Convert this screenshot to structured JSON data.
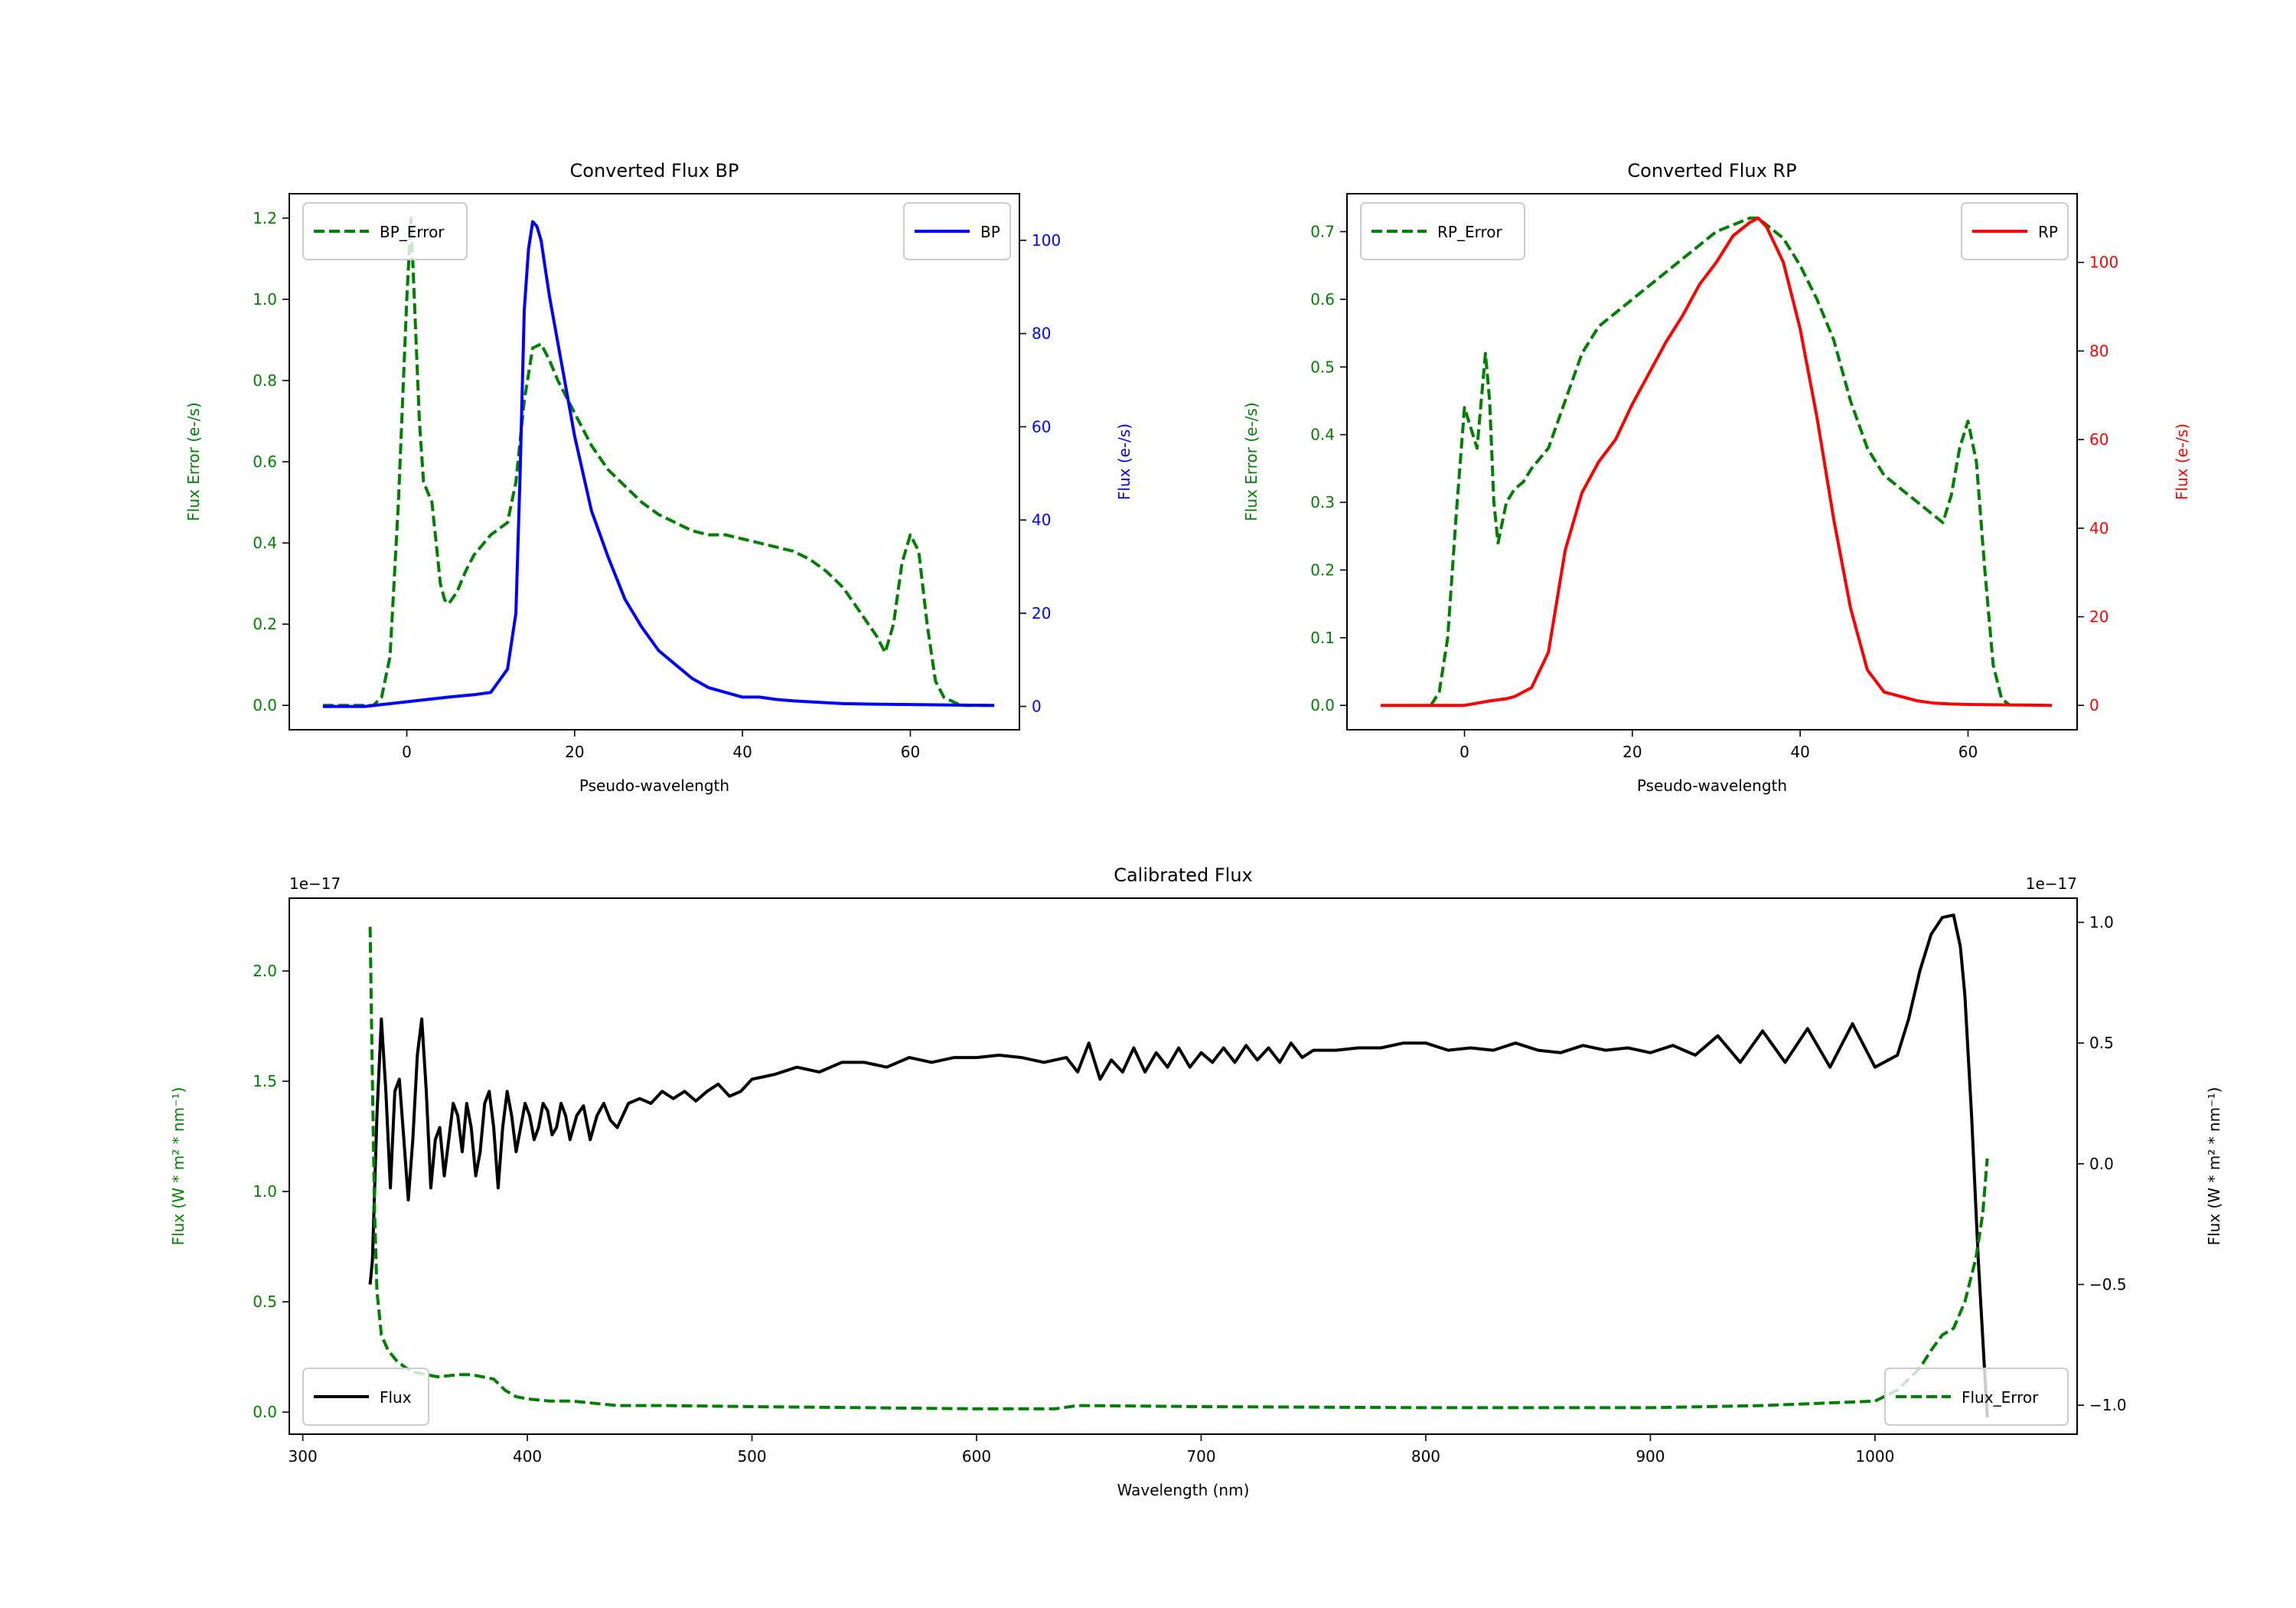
{
  "colors": {
    "bp": "#0000ff",
    "rp": "#ff0000",
    "error": "#008000",
    "flux": "#000000"
  },
  "chart_data": [
    {
      "id": "bp",
      "type": "line",
      "title": "Converted Flux BP",
      "xlabel": "Pseudo-wavelength",
      "ylabel_left": "Flux Error (e-/s)",
      "ylabel_right": "Flux (e-/s)",
      "xlim": [
        -14,
        73
      ],
      "ylim_left": [
        -0.06,
        1.26
      ],
      "ylim_right": [
        -5,
        110
      ],
      "xticks": [
        0,
        20,
        40,
        60
      ],
      "yticks_left": [
        0.0,
        0.2,
        0.4,
        0.6,
        0.8,
        1.0,
        1.2
      ],
      "yticks_right": [
        0,
        20,
        40,
        60,
        80,
        100
      ],
      "legend_left": "BP_Error",
      "legend_right": "BP",
      "series": [
        {
          "name": "BP_Error",
          "axis": "left",
          "style": "dashed",
          "color_key": "error",
          "x": [
            -10,
            -4,
            -3,
            -2,
            -1,
            0,
            0.5,
            1,
            1.5,
            2,
            3,
            4,
            4.5,
            5,
            6,
            7,
            8,
            10,
            12,
            13,
            14,
            15,
            16,
            17,
            18,
            19,
            20,
            22,
            24,
            26,
            28,
            30,
            32,
            34,
            36,
            38,
            40,
            42,
            44,
            46,
            48,
            50,
            52,
            54,
            56,
            57,
            58,
            59,
            60,
            61,
            62,
            63,
            64,
            66,
            68,
            70
          ],
          "y": [
            0.0,
            0.0,
            0.02,
            0.12,
            0.5,
            1.0,
            1.2,
            0.95,
            0.7,
            0.55,
            0.5,
            0.3,
            0.26,
            0.25,
            0.28,
            0.33,
            0.37,
            0.42,
            0.45,
            0.55,
            0.75,
            0.88,
            0.89,
            0.85,
            0.8,
            0.76,
            0.72,
            0.64,
            0.58,
            0.54,
            0.5,
            0.47,
            0.45,
            0.43,
            0.42,
            0.42,
            0.41,
            0.4,
            0.39,
            0.38,
            0.36,
            0.33,
            0.29,
            0.23,
            0.17,
            0.13,
            0.2,
            0.35,
            0.42,
            0.38,
            0.2,
            0.06,
            0.02,
            0.0,
            0.0,
            0.0
          ]
        },
        {
          "name": "BP",
          "axis": "right",
          "style": "solid",
          "color_key": "bp",
          "x": [
            -10,
            -5,
            0,
            5,
            8,
            10,
            12,
            13,
            13.5,
            14,
            14.5,
            15,
            15.5,
            16,
            16.5,
            17,
            18,
            19,
            20,
            22,
            24,
            26,
            28,
            30,
            32,
            34,
            36,
            38,
            40,
            42,
            44,
            46,
            48,
            50,
            52,
            55,
            60,
            65,
            70
          ],
          "y": [
            0,
            0,
            1,
            2,
            2.5,
            3,
            8,
            20,
            50,
            85,
            98,
            104,
            103,
            100,
            94,
            88,
            78,
            68,
            58,
            42,
            32,
            23,
            17,
            12,
            9,
            6,
            4,
            3,
            2,
            2,
            1.5,
            1.2,
            1,
            0.8,
            0.6,
            0.5,
            0.4,
            0.3,
            0.2
          ]
        }
      ]
    },
    {
      "id": "rp",
      "type": "line",
      "title": "Converted Flux RP",
      "xlabel": "Pseudo-wavelength",
      "ylabel_left": "Flux Error (e-/s)",
      "ylabel_right": "Flux (e-/s)",
      "xlim": [
        -14,
        73
      ],
      "ylim_left": [
        -0.036,
        0.756
      ],
      "ylim_right": [
        -5.5,
        115.5
      ],
      "xticks": [
        0,
        20,
        40,
        60
      ],
      "yticks_left": [
        0.0,
        0.1,
        0.2,
        0.3,
        0.4,
        0.5,
        0.6,
        0.7
      ],
      "yticks_right": [
        0,
        20,
        40,
        60,
        80,
        100
      ],
      "legend_left": "RP_Error",
      "legend_right": "RP",
      "series": [
        {
          "name": "RP_Error",
          "axis": "left",
          "style": "dashed",
          "color_key": "error",
          "x": [
            -4,
            -3,
            -2,
            -1,
            0,
            1,
            1.5,
            2,
            2.5,
            3,
            3.5,
            4,
            5,
            6,
            7,
            8,
            10,
            12,
            14,
            16,
            18,
            20,
            22,
            24,
            26,
            28,
            30,
            32,
            34,
            35,
            36,
            38,
            40,
            42,
            44,
            46,
            48,
            50,
            52,
            54,
            56,
            57,
            58,
            59,
            60,
            61,
            62,
            63,
            64,
            65
          ],
          "y": [
            0.0,
            0.02,
            0.1,
            0.28,
            0.44,
            0.4,
            0.38,
            0.45,
            0.52,
            0.45,
            0.3,
            0.24,
            0.3,
            0.32,
            0.33,
            0.35,
            0.38,
            0.45,
            0.52,
            0.56,
            0.58,
            0.6,
            0.62,
            0.64,
            0.66,
            0.68,
            0.7,
            0.71,
            0.72,
            0.72,
            0.71,
            0.69,
            0.65,
            0.6,
            0.54,
            0.45,
            0.38,
            0.34,
            0.32,
            0.3,
            0.28,
            0.27,
            0.31,
            0.38,
            0.42,
            0.36,
            0.2,
            0.06,
            0.01,
            0.0
          ]
        },
        {
          "name": "RP",
          "axis": "right",
          "style": "solid",
          "color_key": "rp",
          "x": [
            -10,
            -5,
            0,
            3,
            5,
            6,
            8,
            10,
            12,
            14,
            16,
            18,
            20,
            22,
            24,
            26,
            28,
            30,
            32,
            34,
            35,
            36,
            38,
            40,
            42,
            44,
            46,
            48,
            50,
            52,
            54,
            56,
            58,
            60,
            65,
            70
          ],
          "y": [
            0,
            0,
            0,
            1,
            1.5,
            2,
            4,
            12,
            35,
            48,
            55,
            60,
            68,
            75,
            82,
            88,
            95,
            100,
            106,
            109,
            110,
            108,
            100,
            85,
            65,
            42,
            22,
            8,
            3,
            2,
            1,
            0.5,
            0.3,
            0.2,
            0.1,
            0
          ]
        }
      ]
    },
    {
      "id": "calibrated",
      "type": "line",
      "title": "Calibrated Flux",
      "xlabel": "Wavelength (nm)",
      "ylabel_left": "Flux (W * m² * nm⁻¹)",
      "ylabel_right": "Flux (W * m² * nm⁻¹)",
      "offset_left": "1e−17",
      "offset_right": "1e−17",
      "xlim": [
        294,
        1090
      ],
      "ylim_left": [
        -0.1,
        2.33
      ],
      "ylim_right": [
        -1.12,
        1.1
      ],
      "xticks": [
        300,
        400,
        500,
        600,
        700,
        800,
        900,
        1000
      ],
      "yticks_left": [
        0.0,
        0.5,
        1.0,
        1.5,
        2.0
      ],
      "ytick_labels_left": [
        "0.0",
        "0.5",
        "1.0",
        "1.5",
        "2.0"
      ],
      "yticks_right": [
        -1.0,
        -0.5,
        0.0,
        0.5,
        1.0
      ],
      "ytick_labels_right": [
        "−1.0",
        "−0.5",
        "0.0",
        "0.5",
        "1.0"
      ],
      "legend_left": "Flux",
      "legend_right": "Flux_Error",
      "series": [
        {
          "name": "Flux",
          "axis": "right",
          "style": "solid",
          "color_key": "flux",
          "x": [
            330,
            331,
            333,
            335,
            337,
            339,
            341,
            343,
            345,
            347,
            349,
            351,
            353,
            355,
            357,
            359,
            361,
            363,
            365,
            367,
            369,
            371,
            373,
            375,
            377,
            379,
            381,
            383,
            385,
            387,
            389,
            391,
            393,
            395,
            397,
            399,
            401,
            403,
            405,
            407,
            409,
            411,
            413,
            415,
            417,
            419,
            422,
            425,
            428,
            431,
            434,
            437,
            440,
            445,
            450,
            455,
            460,
            465,
            470,
            475,
            480,
            485,
            490,
            495,
            500,
            510,
            520,
            530,
            540,
            550,
            560,
            570,
            580,
            590,
            600,
            610,
            620,
            630,
            640,
            645,
            650,
            655,
            660,
            665,
            670,
            675,
            680,
            685,
            690,
            695,
            700,
            705,
            710,
            715,
            720,
            725,
            730,
            735,
            740,
            745,
            750,
            760,
            770,
            780,
            790,
            800,
            810,
            820,
            830,
            840,
            850,
            860,
            870,
            880,
            890,
            900,
            910,
            920,
            930,
            940,
            950,
            960,
            970,
            980,
            990,
            1000,
            1010,
            1015,
            1020,
            1025,
            1030,
            1035,
            1038,
            1040,
            1043,
            1046,
            1050
          ],
          "y": [
            -0.5,
            -0.4,
            0.2,
            0.6,
            0.3,
            -0.1,
            0.3,
            0.35,
            0.1,
            -0.15,
            0.1,
            0.45,
            0.6,
            0.3,
            -0.1,
            0.1,
            0.15,
            -0.05,
            0.1,
            0.25,
            0.2,
            0.05,
            0.25,
            0.15,
            -0.05,
            0.05,
            0.25,
            0.3,
            0.15,
            -0.1,
            0.15,
            0.3,
            0.2,
            0.05,
            0.15,
            0.25,
            0.2,
            0.1,
            0.15,
            0.25,
            0.22,
            0.12,
            0.15,
            0.25,
            0.2,
            0.1,
            0.2,
            0.24,
            0.1,
            0.2,
            0.25,
            0.18,
            0.15,
            0.25,
            0.27,
            0.25,
            0.3,
            0.27,
            0.3,
            0.26,
            0.3,
            0.33,
            0.28,
            0.3,
            0.35,
            0.37,
            0.4,
            0.38,
            0.42,
            0.42,
            0.4,
            0.44,
            0.42,
            0.44,
            0.44,
            0.45,
            0.44,
            0.42,
            0.44,
            0.38,
            0.5,
            0.35,
            0.43,
            0.38,
            0.48,
            0.38,
            0.46,
            0.4,
            0.48,
            0.4,
            0.46,
            0.42,
            0.48,
            0.42,
            0.49,
            0.43,
            0.48,
            0.42,
            0.5,
            0.44,
            0.47,
            0.47,
            0.48,
            0.48,
            0.5,
            0.5,
            0.47,
            0.48,
            0.47,
            0.5,
            0.47,
            0.46,
            0.49,
            0.47,
            0.48,
            0.46,
            0.49,
            0.45,
            0.53,
            0.42,
            0.55,
            0.42,
            0.56,
            0.4,
            0.58,
            0.4,
            0.45,
            0.6,
            0.8,
            0.95,
            1.02,
            1.03,
            0.9,
            0.7,
            0.2,
            -0.4,
            -1.05
          ]
        },
        {
          "name": "Flux_Error",
          "axis": "left",
          "style": "dashed",
          "color_key": "error",
          "x": [
            330,
            331,
            332,
            333,
            335,
            338,
            342,
            346,
            350,
            355,
            360,
            370,
            375,
            380,
            385,
            390,
            395,
            400,
            410,
            420,
            440,
            460,
            500,
            550,
            600,
            635,
            645,
            700,
            800,
            900,
            950,
            1000,
            1010,
            1015,
            1020,
            1025,
            1030,
            1035,
            1040,
            1045,
            1048,
            1050
          ],
          "y": [
            2.2,
            1.5,
            0.9,
            0.55,
            0.35,
            0.28,
            0.23,
            0.2,
            0.18,
            0.17,
            0.16,
            0.17,
            0.17,
            0.16,
            0.15,
            0.1,
            0.07,
            0.06,
            0.05,
            0.05,
            0.03,
            0.03,
            0.025,
            0.02,
            0.015,
            0.015,
            0.03,
            0.025,
            0.02,
            0.02,
            0.03,
            0.05,
            0.1,
            0.15,
            0.2,
            0.28,
            0.35,
            0.38,
            0.5,
            0.7,
            0.9,
            1.15
          ]
        }
      ]
    }
  ]
}
